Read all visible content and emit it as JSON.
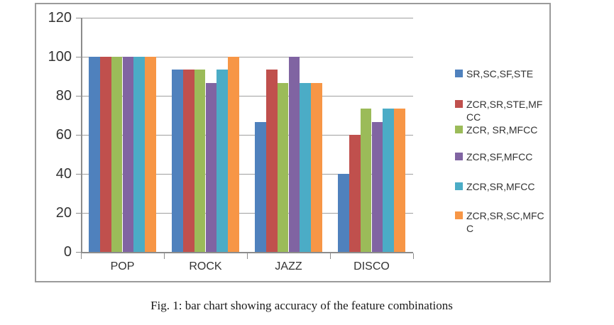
{
  "caption": {
    "text": "Fig. 1: bar chart showing accuracy of the feature combinations"
  },
  "colors": {
    "axis": "#8c8c8c",
    "grid": "#a0a0a0",
    "border": "#9b9b9b",
    "text": "#333333"
  },
  "chart_data": {
    "type": "bar",
    "title": "",
    "xlabel": "",
    "ylabel": "",
    "categories": [
      "POP",
      "ROCK",
      "JAZZ",
      "DISCO"
    ],
    "series": [
      {
        "name": "SR,SC,SF,STE",
        "color": "#4F81BD",
        "values": [
          100,
          93.3,
          66.7,
          40
        ]
      },
      {
        "name": "ZCR,SR,STE,MFCC",
        "color": "#C0504D",
        "values": [
          100,
          93.3,
          93.3,
          60
        ]
      },
      {
        "name": "ZCR, SR,MFCC",
        "color": "#9BBB59",
        "values": [
          100,
          93.3,
          86.7,
          73.3
        ]
      },
      {
        "name": "ZCR,SF,MFCC",
        "color": "#8064A2",
        "values": [
          100,
          86.7,
          100,
          66.7
        ]
      },
      {
        "name": "ZCR,SR,MFCC",
        "color": "#4BACC6",
        "values": [
          100,
          93.3,
          86.7,
          73.3
        ]
      },
      {
        "name": "ZCR,SR,SC,MFCC",
        "color": "#F79646",
        "values": [
          100,
          100,
          86.7,
          73.3
        ]
      }
    ],
    "ylim": [
      0,
      120
    ],
    "yticks": [
      0,
      20,
      40,
      60,
      80,
      100,
      120
    ],
    "grid": true,
    "legend_position": "right",
    "legend_wrapped_lines": [
      [
        "SR,SC,SF,STE"
      ],
      [
        "ZCR,SR,STE,MF",
        "CC"
      ],
      [
        "ZCR, SR,MFCC"
      ],
      [
        "ZCR,SF,MFCC"
      ],
      [
        "ZCR,SR,MFCC"
      ],
      [
        "ZCR,SR,SC,MFC",
        "C"
      ]
    ]
  }
}
